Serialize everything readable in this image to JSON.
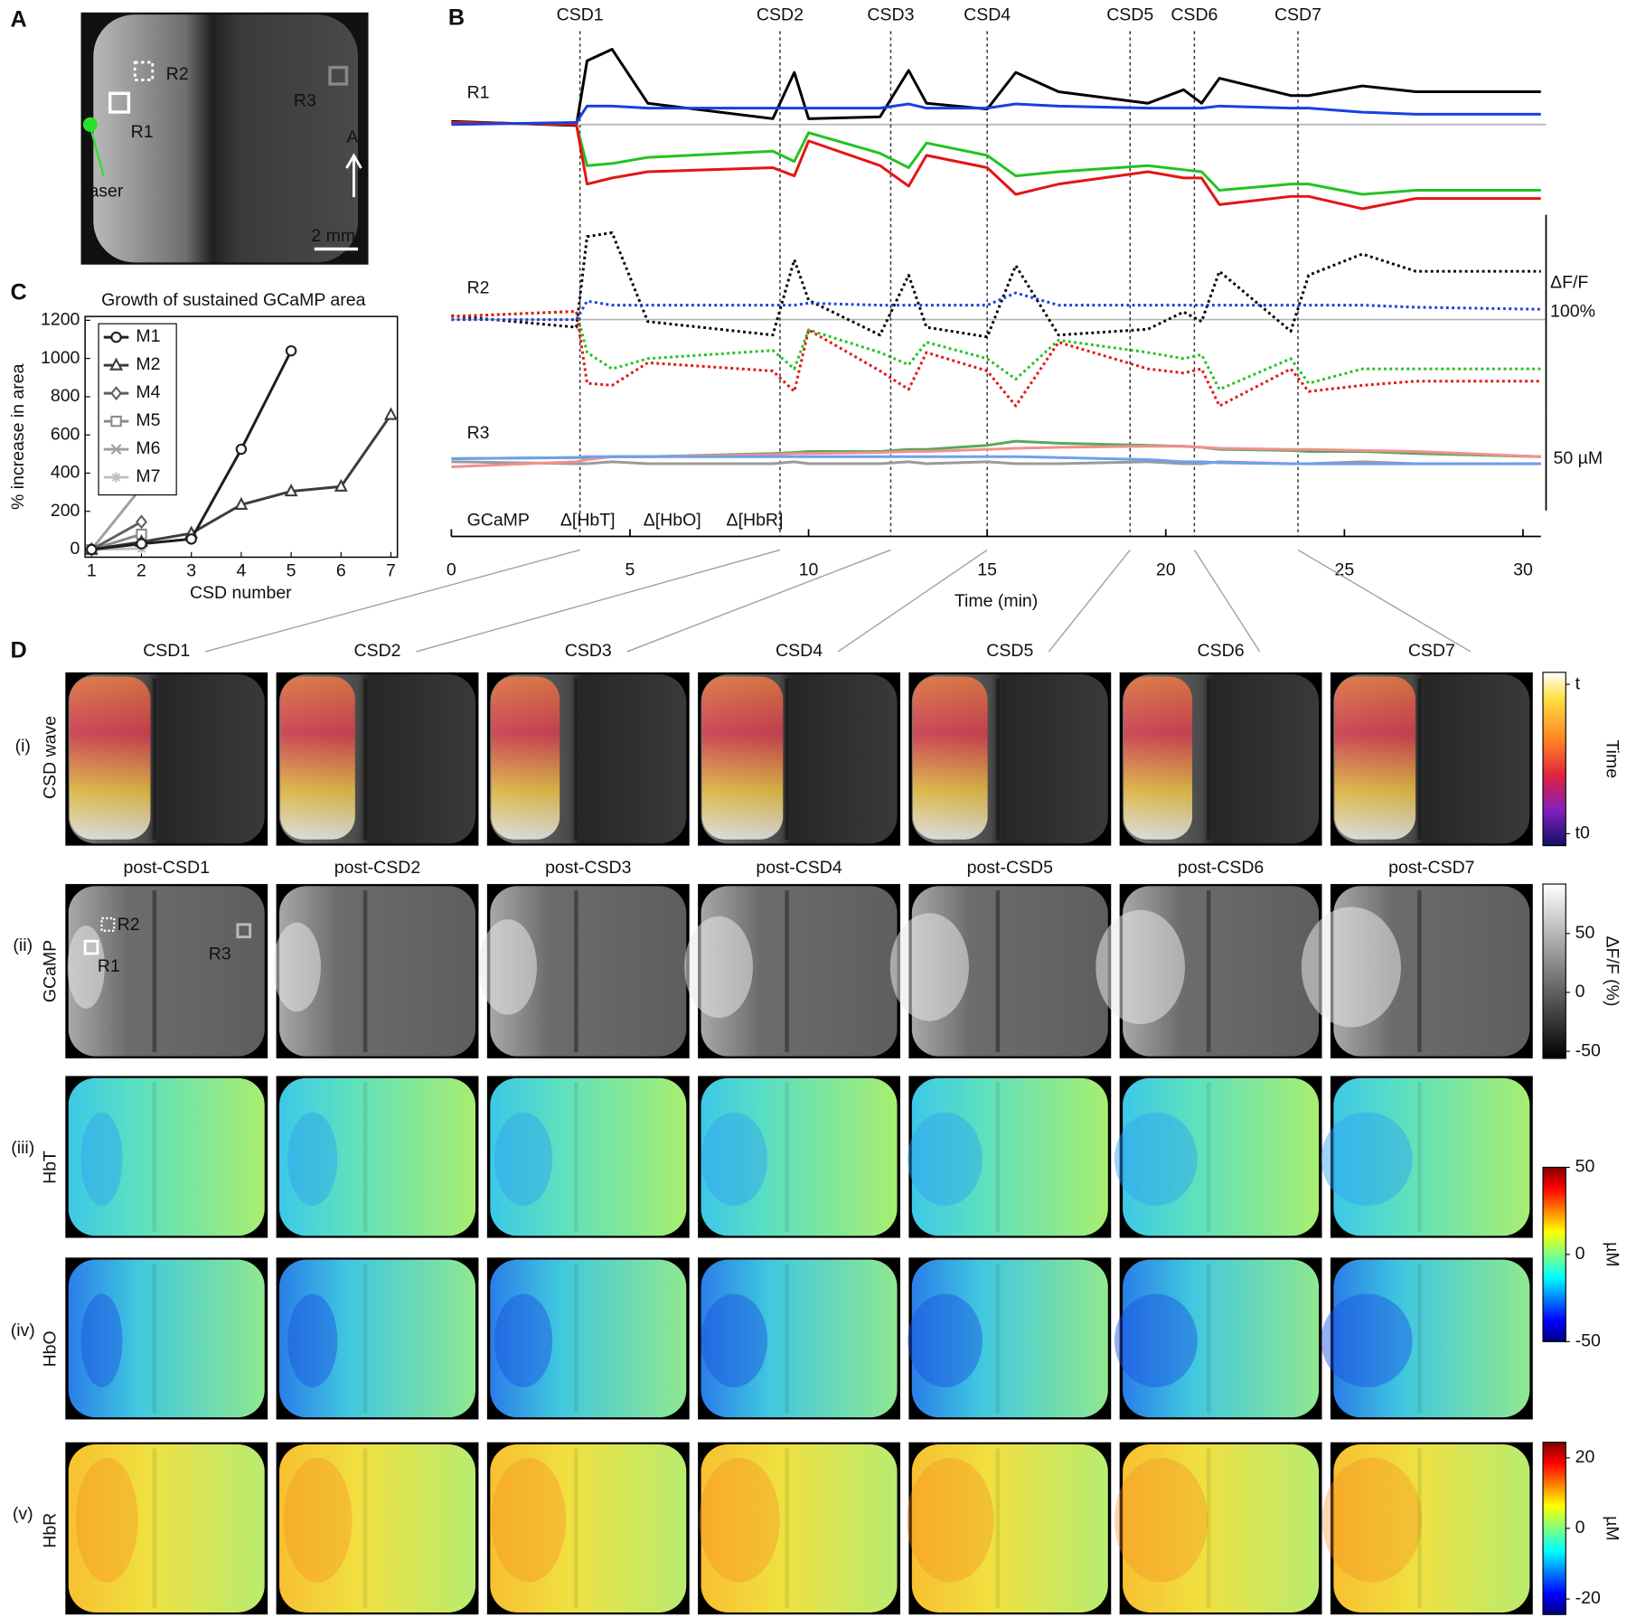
{
  "panel_labels": [
    "A",
    "B",
    "C",
    "D"
  ],
  "panel_a": {
    "r1": "R1",
    "r2": "R2",
    "r3": "R3",
    "laser": "laser",
    "anterior": "A",
    "scale": "2 mm"
  },
  "chart_data": [
    {
      "type": "line",
      "xlabel": "Time (min)",
      "x": [
        0,
        3.5,
        3.8,
        4.5,
        5.5,
        9,
        9.6,
        10,
        12,
        12.8,
        13.3,
        15,
        15.8,
        17,
        19.5,
        20.5,
        21,
        21.5,
        23.5,
        24,
        25.5,
        27,
        30.5
      ],
      "xlim": [
        0,
        30.5
      ],
      "xticks": [
        0,
        5,
        10,
        15,
        20,
        25,
        30
      ],
      "events": [
        {
          "label": "CSD1",
          "x": 3.6
        },
        {
          "label": "CSD2",
          "x": 9.2
        },
        {
          "label": "CSD3",
          "x": 12.3
        },
        {
          "label": "CSD4",
          "x": 15
        },
        {
          "label": "CSD5",
          "x": 19
        },
        {
          "label": "CSD6",
          "x": 20.8
        },
        {
          "label": "CSD7",
          "x": 23.7
        }
      ],
      "legend": [
        {
          "name": "GCaMP",
          "color": "#000000"
        },
        {
          "name": "Δ[HbT]",
          "color": "#22c322"
        },
        {
          "name": "Δ[HbO]",
          "color": "#e41414"
        },
        {
          "name": "Δ[HbR]",
          "color": "#1a3fe0"
        }
      ],
      "scalebars": [
        {
          "label": "ΔF/F",
          "value_label": "100%",
          "value": 100
        },
        {
          "value_label": "50 µM",
          "value": 50
        }
      ],
      "regions": [
        {
          "label": "R1",
          "series": [
            {
              "color": "#000000",
              "style": "solid",
              "values": [
                1.6,
                -0.5,
                33,
                39,
                11,
                3,
                27,
                3,
                4,
                28,
                11,
                8,
                27,
                17,
                11,
                18,
                11,
                24,
                15,
                15,
                20,
                17,
                17
              ]
            },
            {
              "color": "#22c322",
              "style": "solid",
              "values": [
                1,
                0,
                -20,
                -19,
                -16,
                -13,
                -18,
                -4,
                -14,
                -21,
                -9,
                -15,
                -25,
                -23,
                -20,
                -22,
                -23,
                -32,
                -29,
                -29,
                -34,
                -32,
                -32
              ]
            },
            {
              "color": "#e41414",
              "style": "solid",
              "values": [
                1,
                0,
                -29,
                -26,
                -23,
                -21,
                -25,
                -8,
                -20,
                -30,
                -15,
                -21,
                -34,
                -29,
                -23,
                -26,
                -26,
                -39,
                -35,
                -35,
                -41,
                -36,
                -36
              ]
            },
            {
              "color": "#1a3fe0",
              "style": "solid",
              "values": [
                0,
                1,
                9,
                9,
                8,
                8,
                8,
                8,
                8,
                10,
                8,
                8,
                10,
                9,
                8,
                8,
                8,
                9,
                8,
                8,
                6,
                5,
                5
              ]
            }
          ]
        },
        {
          "label": "R2",
          "series": [
            {
              "color": "#000000",
              "style": "dotted",
              "values": [
                2,
                -4,
                43,
                45,
                -1,
                -8,
                31,
                10,
                -8,
                23,
                -4,
                -9,
                28,
                -8,
                -5,
                4,
                -1,
                25,
                -6,
                23,
                34,
                25,
                25
              ]
            },
            {
              "color": "#22c322",
              "style": "dotted",
              "values": [
                1.5,
                4,
                -16,
                -24,
                -19,
                -15,
                -24,
                -5,
                -16,
                -22,
                -11,
                -19,
                -29,
                -10,
                -16,
                -19,
                -17,
                -34,
                -19,
                -31,
                -24,
                -24,
                -24
              ]
            },
            {
              "color": "#e41414",
              "style": "dotted",
              "values": [
                1.5,
                4,
                -31,
                -32,
                -21,
                -25,
                -35,
                -5,
                -25,
                -34,
                -16,
                -25,
                -42,
                -11,
                -24,
                -26,
                -24,
                -42,
                -24,
                -35,
                -32,
                -30,
                -30
              ]
            },
            {
              "color": "#1a3fe0",
              "style": "dotted",
              "values": [
                0,
                0,
                9,
                7,
                7,
                7,
                7,
                8,
                7,
                7,
                7,
                7,
                13,
                7,
                7,
                7,
                7,
                7,
                7,
                7,
                7,
                6,
                5
              ]
            }
          ]
        },
        {
          "label": "R3",
          "series": [
            {
              "color": "#9a9a9a",
              "style": "solid",
              "values": [
                0,
                -1,
                -1,
                0,
                -1,
                -1,
                0,
                -1,
                -1,
                0,
                -1,
                0,
                -1,
                -1,
                0,
                -1,
                -1,
                0,
                -1,
                -1,
                0,
                -1,
                -1
              ]
            },
            {
              "color": "#5aa85a",
              "style": "solid",
              "values": [
                1.5,
                2,
                2,
                2.5,
                2.5,
                4,
                4.5,
                5,
                5,
                6,
                6,
                8,
                10,
                9,
                8,
                7.5,
                7,
                6,
                5.5,
                5,
                5,
                4,
                2.5
              ]
            },
            {
              "color": "#f09090",
              "style": "solid",
              "values": [
                -2.5,
                0,
                1,
                2.5,
                2.5,
                3.5,
                4,
                4,
                4.5,
                5,
                5,
                6,
                6.5,
                7,
                7.5,
                7.5,
                7,
                6.5,
                6,
                6,
                5.5,
                5,
                2.5
              ]
            },
            {
              "color": "#6f9ff0",
              "style": "solid",
              "values": [
                1.5,
                2,
                2.5,
                2.5,
                2.5,
                2.5,
                2.5,
                2.5,
                2.5,
                2.5,
                2.5,
                2.5,
                2.5,
                2,
                1,
                0,
                0,
                -0.5,
                -1,
                -1,
                -1,
                -1,
                -1
              ]
            }
          ]
        }
      ]
    },
    {
      "type": "line",
      "title": "Growth of sustained GCaMP area",
      "xlabel": "CSD number",
      "ylabel": "% increase in area",
      "x": [
        1,
        2,
        3,
        4,
        5,
        6,
        7
      ],
      "xlim": [
        0.87,
        7.13
      ],
      "xticks": [
        1,
        2,
        3,
        4,
        5,
        6,
        7
      ],
      "ylim": [
        -40,
        1220
      ],
      "yticks": [
        0,
        200,
        400,
        600,
        800,
        1000,
        1200
      ],
      "series": [
        {
          "name": "M1",
          "color": "#1e1e1e",
          "marker": "circle",
          "values": [
            0,
            30,
            55,
            525,
            1040,
            null,
            null
          ]
        },
        {
          "name": "M2",
          "color": "#3c3c3c",
          "marker": "triangle",
          "values": [
            0,
            40,
            85,
            235,
            305,
            330,
            705
          ]
        },
        {
          "name": "M4",
          "color": "#5f5f5f",
          "marker": "diamond",
          "values": [
            0,
            145,
            null,
            null,
            null,
            null,
            null
          ]
        },
        {
          "name": "M5",
          "color": "#8a8a8a",
          "marker": "square",
          "values": [
            0,
            80,
            null,
            null,
            null,
            null,
            null
          ]
        },
        {
          "name": "M6",
          "color": "#a0a0a0",
          "marker": "x",
          "values": [
            0,
            325,
            null,
            null,
            null,
            null,
            null
          ]
        },
        {
          "name": "M7",
          "color": "#c0c0c0",
          "marker": "star",
          "values": [
            0,
            5,
            null,
            null,
            null,
            null,
            null
          ]
        }
      ]
    }
  ],
  "panel_d": {
    "columns": [
      {
        "wave": "CSD1",
        "post": "post-CSD1"
      },
      {
        "wave": "CSD2",
        "post": "post-CSD2"
      },
      {
        "wave": "CSD3",
        "post": "post-CSD3"
      },
      {
        "wave": "CSD4",
        "post": "post-CSD4"
      },
      {
        "wave": "CSD5",
        "post": "post-CSD5"
      },
      {
        "wave": "CSD6",
        "post": "post-CSD6"
      },
      {
        "wave": "CSD7",
        "post": "post-CSD7"
      }
    ],
    "rows": [
      {
        "numeral": "(i)",
        "label": "CSD wave"
      },
      {
        "numeral": "(ii)",
        "label": "GCaMP"
      },
      {
        "numeral": "(iii)",
        "label": "HbT"
      },
      {
        "numeral": "(iv)",
        "label": "HbO"
      },
      {
        "numeral": "(v)",
        "label": "HbR"
      }
    ],
    "roi_labels": [
      "R1",
      "R2",
      "R3"
    ],
    "colorbars": [
      {
        "label": "Time",
        "lim": [
          -0.08,
          1.08
        ],
        "ticks": [
          {
            "value": 1,
            "label": "t"
          },
          {
            "value": 0,
            "label": "t0"
          }
        ]
      },
      {
        "label": "ΔF/F (%)",
        "lim": [
          -56,
          92
        ],
        "ticks": [
          50,
          0,
          -50
        ]
      },
      {
        "label": "µM",
        "lim": [
          -50,
          50
        ],
        "ticks": [
          50,
          0,
          -50
        ]
      },
      {
        "label": "µM",
        "lim": [
          -24.4,
          24.4
        ],
        "ticks": [
          20,
          0,
          -20
        ]
      }
    ]
  }
}
